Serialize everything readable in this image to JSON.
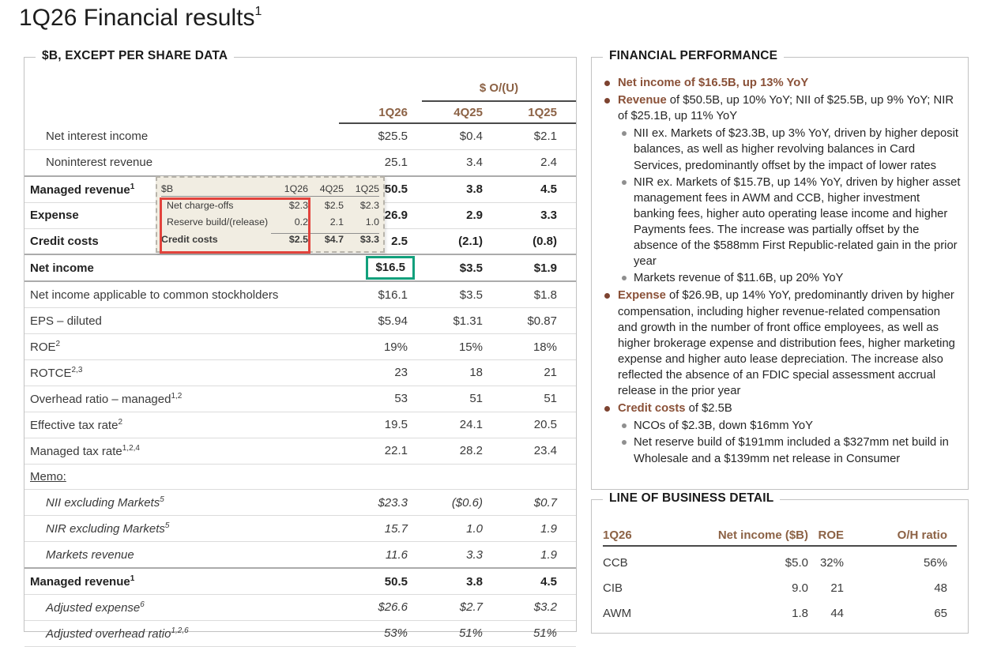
{
  "title": {
    "text": "1Q26 Financial results",
    "sup": "1"
  },
  "left_panel": {
    "legend": "$B, EXCEPT PER SHARE DATA",
    "ou_header": "$ O/(U)",
    "columns": [
      "1Q26",
      "4Q25",
      "1Q25"
    ],
    "rows": [
      {
        "label": "Net interest income",
        "sup": "",
        "values": [
          "$25.5",
          "$0.4",
          "$2.1"
        ]
      },
      {
        "label": "Noninterest revenue",
        "sup": "",
        "values": [
          "25.1",
          "3.4",
          "2.4"
        ]
      },
      {
        "label": "Managed revenue",
        "sup": "1",
        "values": [
          "50.5",
          "3.8",
          "4.5"
        ]
      },
      {
        "label": "Expense",
        "sup": "",
        "values": [
          "26.9",
          "2.9",
          "3.3"
        ]
      },
      {
        "label": "Credit costs",
        "sup": "",
        "values": [
          "2.5",
          "(2.1)",
          "(0.8)"
        ]
      },
      {
        "label": "Net income",
        "sup": "",
        "values": [
          "$16.5",
          "$3.5",
          "$1.9"
        ]
      },
      {
        "label": "Net income applicable to common stockholders",
        "sup": "",
        "values": [
          "$16.1",
          "$3.5",
          "$1.8"
        ]
      },
      {
        "label": "EPS – diluted",
        "sup": "",
        "values": [
          "$5.94",
          "$1.31",
          "$0.87"
        ]
      },
      {
        "label": "ROE",
        "sup": "2",
        "values": [
          "19%",
          "15%",
          "18%"
        ]
      },
      {
        "label": "ROTCE",
        "sup": "2,3",
        "values": [
          "23",
          "18",
          "21"
        ]
      },
      {
        "label": "Overhead ratio – managed",
        "sup": "1,2",
        "values": [
          "53",
          "51",
          "51"
        ]
      },
      {
        "label": "Effective tax rate",
        "sup": "2",
        "values": [
          "19.5",
          "24.1",
          "20.5"
        ]
      },
      {
        "label": "Managed tax rate",
        "sup": "1,2,4",
        "values": [
          "22.1",
          "28.2",
          "23.4"
        ]
      },
      {
        "label": "Memo:",
        "sup": "",
        "values": [
          "",
          "",
          ""
        ]
      },
      {
        "label": "NII excluding Markets",
        "sup": "5",
        "values": [
          "$23.3",
          "($0.6)",
          "$0.7"
        ]
      },
      {
        "label": "NIR excluding Markets",
        "sup": "5",
        "values": [
          "15.7",
          "1.0",
          "1.9"
        ]
      },
      {
        "label": "Markets revenue",
        "sup": "",
        "values": [
          "11.6",
          "3.3",
          "1.9"
        ]
      },
      {
        "label": "Managed revenue",
        "sup": "1",
        "values": [
          "50.5",
          "3.8",
          "4.5"
        ]
      },
      {
        "label": "Adjusted expense",
        "sup": "6",
        "values": [
          "$26.6",
          "$2.7",
          "$3.2"
        ]
      },
      {
        "label": "Adjusted overhead ratio",
        "sup": "1,2,6",
        "values": [
          "53%",
          "51%",
          "51%"
        ]
      }
    ],
    "overlay": {
      "unit": "$B",
      "columns": [
        "1Q26",
        "4Q25",
        "1Q25"
      ],
      "rows": [
        {
          "label": "Net charge-offs",
          "values": [
            "$2.3",
            "$2.5",
            "$2.3"
          ]
        },
        {
          "label": "Reserve build/(release)",
          "values": [
            "0.2",
            "2.1",
            "1.0"
          ]
        },
        {
          "label": "Credit costs",
          "values": [
            "$2.5",
            "$4.7",
            "$3.3"
          ]
        }
      ]
    }
  },
  "financial_performance": {
    "legend": "FINANCIAL PERFORMANCE",
    "bullets": [
      {
        "lead": "Net income",
        "rest": " of $16.5B, up 13% YoY",
        "subs": []
      },
      {
        "lead": "Revenue",
        "rest": " of $50.5B, up 10% YoY; NII of $25.5B, up 9% YoY; NIR of $25.1B, up 11% YoY",
        "subs": [
          "NII ex. Markets of $23.3B, up 3% YoY, driven by higher deposit balances, as well as higher revolving balances in Card Services, predominantly offset by the impact of lower rates",
          "NIR ex. Markets of $15.7B, up 14% YoY, driven by higher asset management fees in AWM and CCB, higher investment banking fees, higher auto operating lease income and higher Payments fees. The increase was partially offset by the absence of the $588mm First Republic-related gain in the prior year",
          "Markets revenue of $11.6B, up 20% YoY"
        ]
      },
      {
        "lead": "Expense",
        "rest": " of $26.9B, up 14% YoY, predominantly driven by higher compensation, including higher revenue-related compensation and growth in the number of front office employees, as well as higher brokerage expense and distribution fees, higher marketing expense and higher auto lease depreciation. The increase also reflected the absence of an FDIC special assessment accrual release in the prior year",
        "subs": []
      },
      {
        "lead": "Credit costs",
        "rest": " of $2.5B",
        "subs": [
          "NCOs of $2.3B, down $16mm YoY",
          "Net reserve build of $191mm included a $327mm net build in Wholesale and a $139mm net release in Consumer"
        ]
      }
    ]
  },
  "lob": {
    "legend": "LINE OF BUSINESS DETAIL",
    "columns": [
      "1Q26",
      "Net income ($B)",
      "ROE",
      "O/H ratio"
    ],
    "rows": [
      {
        "label": "CCB",
        "values": [
          "$5.0",
          "32%",
          "56%"
        ]
      },
      {
        "label": "CIB",
        "values": [
          "9.0",
          "21",
          "48"
        ]
      },
      {
        "label": "AWM",
        "values": [
          "1.8",
          "44",
          "65"
        ]
      }
    ]
  },
  "colors": {
    "accent_brown": "#8c6245",
    "bullet_brown": "#7d4330",
    "lead_brown": "#8a5138",
    "highlight_red": "#e2433c",
    "highlight_green": "#12a07c",
    "overlay_bg": "#f1ede2"
  }
}
